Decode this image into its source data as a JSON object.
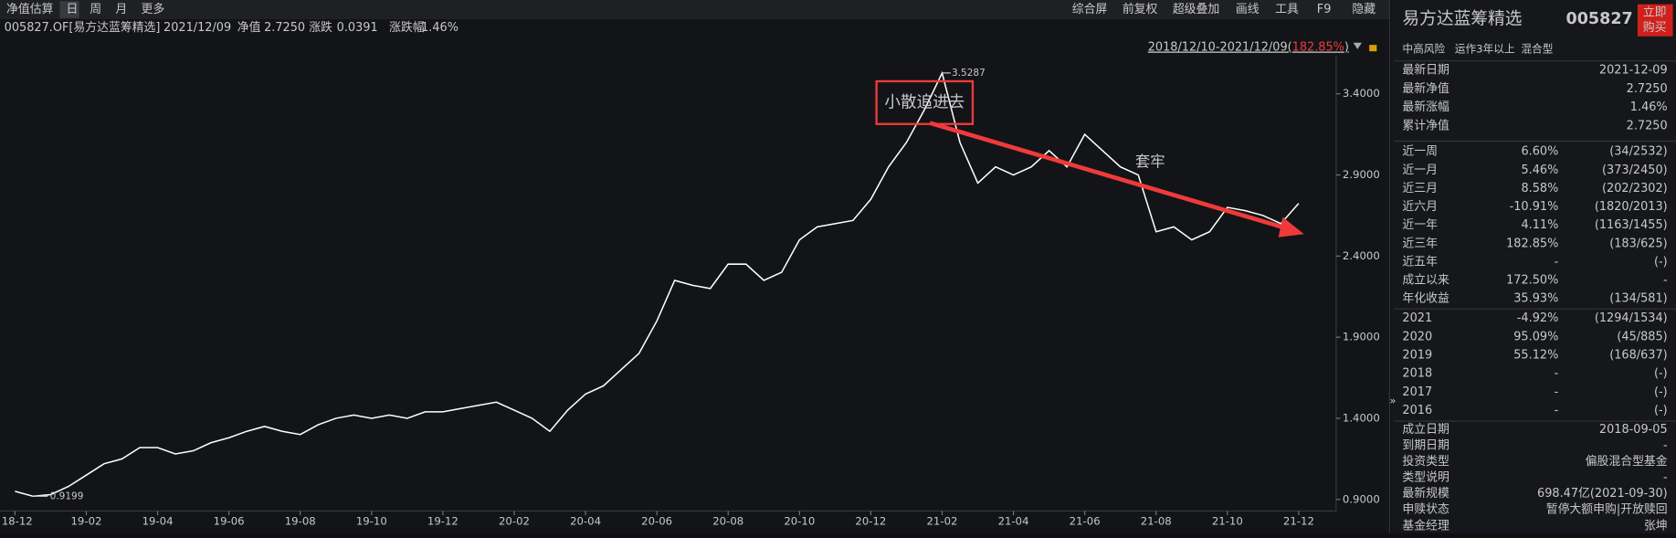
{
  "toolbar": {
    "left": [
      "净值估算",
      "日",
      "周",
      "月",
      "更多"
    ],
    "right": [
      "综合屏",
      "前复权",
      "超级叠加",
      "画线",
      "工具",
      "F9",
      "隐藏"
    ]
  },
  "info": {
    "code": "005827.OF[易方达蓝筹精选]",
    "date": "2021/12/09",
    "nav_label": "净值",
    "nav": "2.7250",
    "change_label": "涨跌",
    "change": "0.0391",
    "pct_label": "涨跌幅",
    "pct": "1.46%"
  },
  "range": {
    "prefix": "2018/12/10-2021/12/09(",
    "value": "182.85%",
    "suffix": ")"
  },
  "chart_data": {
    "type": "line",
    "color": "#ffffff",
    "categories": [
      "18-12",
      null,
      null,
      null,
      "19-02",
      null,
      null,
      null,
      "19-04",
      null,
      null,
      null,
      "19-06",
      null,
      null,
      null,
      "19-08",
      null,
      null,
      null,
      "19-10",
      null,
      null,
      null,
      "19-12",
      null,
      null,
      null,
      "20-02",
      null,
      null,
      null,
      "20-04",
      null,
      null,
      null,
      "20-06",
      null,
      null,
      null,
      "20-08",
      null,
      null,
      null,
      "20-10",
      null,
      null,
      null,
      "20-12",
      null,
      null,
      null,
      "21-02",
      null,
      null,
      null,
      "21-04",
      null,
      null,
      null,
      "21-06",
      null,
      null,
      null,
      "21-08",
      null,
      null,
      null,
      "21-10",
      null,
      null,
      null,
      "21-12"
    ],
    "values": [
      0.95,
      0.9199,
      0.93,
      0.98,
      1.05,
      1.12,
      1.15,
      1.22,
      1.22,
      1.18,
      1.2,
      1.25,
      1.28,
      1.32,
      1.35,
      1.32,
      1.3,
      1.36,
      1.4,
      1.42,
      1.4,
      1.42,
      1.4,
      1.44,
      1.44,
      1.46,
      1.48,
      1.5,
      1.45,
      1.4,
      1.32,
      1.45,
      1.55,
      1.6,
      1.7,
      1.8,
      2.0,
      2.25,
      2.22,
      2.2,
      2.35,
      2.35,
      2.25,
      2.3,
      2.5,
      2.58,
      2.6,
      2.62,
      2.75,
      2.95,
      3.1,
      3.3,
      3.5287,
      3.1,
      2.85,
      2.95,
      2.9,
      2.95,
      3.05,
      2.95,
      3.15,
      3.05,
      2.95,
      2.9,
      2.55,
      2.58,
      2.5,
      2.55,
      2.7,
      2.68,
      2.65,
      2.6,
      2.725
    ],
    "ylim": [
      0.717,
      3.616
    ],
    "yticks": [
      {
        "value": 0.9,
        "label": "0.9000"
      },
      {
        "value": 1.4,
        "label": "1.4000"
      },
      {
        "value": 1.9,
        "label": "1.9000"
      },
      {
        "value": 2.4,
        "label": "2.4000"
      },
      {
        "value": 2.9,
        "label": "2.9000"
      },
      {
        "value": 3.4,
        "label": "3.4000"
      }
    ],
    "grid": false,
    "peak": {
      "index": 52,
      "value": 3.5287
    },
    "low": {
      "index": 1,
      "value": 0.9199
    },
    "callout": "小散追进去",
    "trend_note": "套牢"
  },
  "panel": {
    "title": "易方达蓝筹精选",
    "code": "005827",
    "buy": [
      "立即",
      "购买"
    ],
    "tags": [
      "中高风险",
      "运作3年以上",
      "混合型"
    ],
    "basics": [
      [
        "最新日期",
        "2021-12-09"
      ],
      [
        "最新净值",
        "2.7250"
      ],
      [
        "最新涨幅",
        "1.46%"
      ],
      [
        "累计净值",
        "2.7250"
      ]
    ],
    "returns": [
      [
        "近一周",
        "6.60%",
        "(34/2532)"
      ],
      [
        "近一月",
        "5.46%",
        "(373/2450)"
      ],
      [
        "近三月",
        "8.58%",
        "(202/2302)"
      ],
      [
        "近六月",
        "-10.91%",
        "(1820/2013)"
      ],
      [
        "近一年",
        "4.11%",
        "(1163/1455)"
      ],
      [
        "近三年",
        "182.85%",
        "(183/625)"
      ],
      [
        "近五年",
        "-",
        "(-)"
      ],
      [
        "成立以来",
        "172.50%",
        "-"
      ],
      [
        "年化收益",
        "35.93%",
        "(134/581)"
      ]
    ],
    "years": [
      [
        "2021",
        "-4.92%",
        "(1294/1534)"
      ],
      [
        "2020",
        "95.09%",
        "(45/885)"
      ],
      [
        "2019",
        "55.12%",
        "(168/637)"
      ],
      [
        "2018",
        "-",
        "(-)"
      ],
      [
        "2017",
        "-",
        "(-)"
      ],
      [
        "2016",
        "-",
        "(-)"
      ]
    ],
    "details": [
      [
        "成立日期",
        "2018-09-05"
      ],
      [
        "到期日期",
        "-"
      ],
      [
        "投资类型",
        "偏股混合型基金"
      ],
      [
        "类型说明",
        "-"
      ],
      [
        "最新规模",
        "698.47亿(2021-09-30)"
      ],
      [
        "申赎状态",
        "暂停大额申购|开放赎回"
      ],
      [
        "基金经理",
        "张坤"
      ]
    ]
  }
}
